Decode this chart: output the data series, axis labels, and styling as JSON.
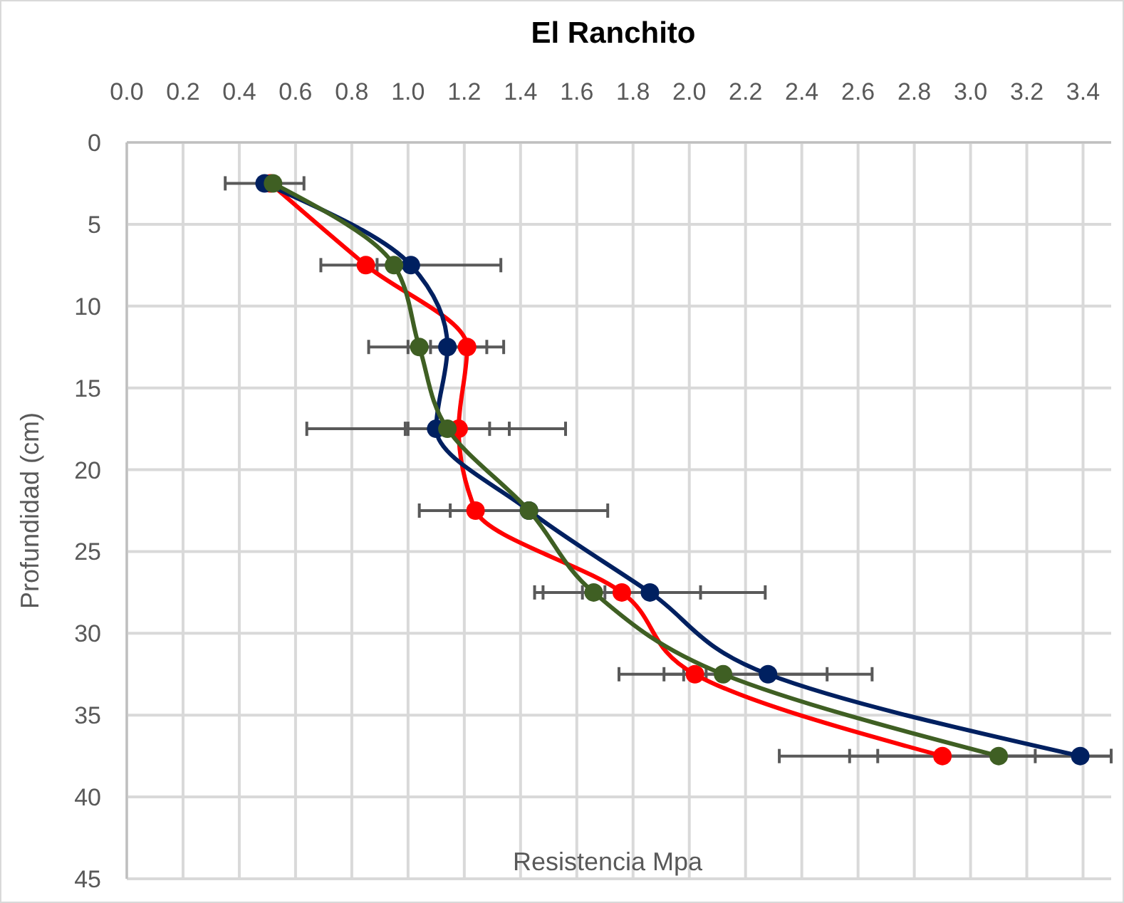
{
  "chart_data": {
    "type": "line",
    "title": "El Ranchito",
    "xlabel": "Resistencia Mpa",
    "ylabel": "Profundidad (cm)",
    "xlim": [
      0,
      3.5
    ],
    "xticks": [
      {
        "value": 0,
        "label": "0.0"
      },
      {
        "value": 0.2,
        "label": "0.2"
      },
      {
        "value": 0.4,
        "label": "0.4"
      },
      {
        "value": 0.6,
        "label": "0.6"
      },
      {
        "value": 0.8,
        "label": "0.8"
      },
      {
        "value": 1,
        "label": "1.0"
      },
      {
        "value": 1.2,
        "label": "1.2"
      },
      {
        "value": 1.4,
        "label": "1.4"
      },
      {
        "value": 1.6,
        "label": "1.6"
      },
      {
        "value": 1.8,
        "label": "1.8"
      },
      {
        "value": 2,
        "label": "2.0"
      },
      {
        "value": 2.2,
        "label": "2.2"
      },
      {
        "value": 2.4,
        "label": "2.4"
      },
      {
        "value": 2.6,
        "label": "2.6"
      },
      {
        "value": 2.8,
        "label": "2.8"
      },
      {
        "value": 3,
        "label": "3.0"
      },
      {
        "value": 3.2,
        "label": "3.2"
      },
      {
        "value": 3.4,
        "label": "3.4"
      }
    ],
    "ylim": [
      45,
      0
    ],
    "yticks": [
      0,
      5,
      10,
      15,
      20,
      25,
      30,
      35,
      40,
      45
    ],
    "grid": true,
    "marker": "circle",
    "line_style": "solid",
    "series": [
      {
        "color": "#ff0000",
        "x": [
          0.51,
          0.85,
          1.21,
          1.18,
          1.24,
          1.76,
          2.02,
          2.9
        ],
        "values": [
          2.5,
          7.5,
          12.5,
          17.5,
          22.5,
          27.5,
          32.5,
          37.5
        ],
        "xerrors": [
          null,
          null,
          0.13,
          0.18,
          0.2,
          0.28,
          0.04,
          0.33
        ]
      },
      {
        "color": "#002060",
        "x": [
          0.49,
          1.01,
          1.14,
          1.1,
          1.43,
          1.86,
          2.28,
          3.39
        ],
        "values": [
          2.5,
          7.5,
          12.5,
          17.5,
          22.5,
          27.5,
          32.5,
          37.5
        ],
        "xerrors": [
          0.14,
          0.32,
          0.14,
          0.46,
          null,
          0.41,
          0.37,
          [
            2.32,
            3.5
          ]
        ]
      },
      {
        "color": "#3f5f23",
        "x": [
          0.52,
          0.95,
          1.04,
          1.14,
          1.43,
          1.66,
          2.12,
          3.1
        ],
        "values": [
          2.5,
          7.5,
          12.5,
          17.5,
          22.5,
          27.5,
          32.5,
          37.5
        ],
        "xerrors": [
          null,
          0.06,
          0.18,
          0.15,
          0.28,
          0.04,
          0.37,
          [
            2.67,
            3.5
          ]
        ]
      }
    ]
  }
}
